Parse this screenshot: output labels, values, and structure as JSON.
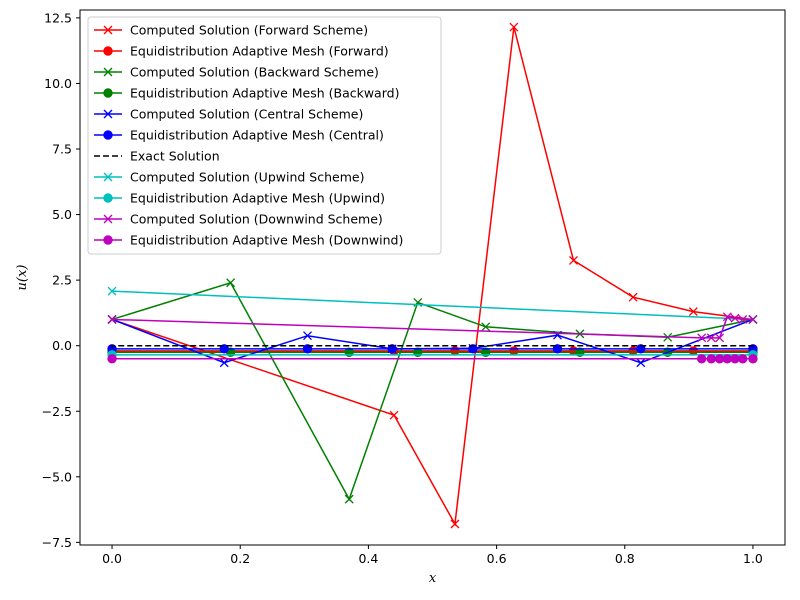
{
  "chart_data": {
    "type": "line",
    "title": "",
    "xlabel": "x",
    "ylabel": "u(x)",
    "xlim": [
      -0.05,
      1.05
    ],
    "ylim": [
      -7.6,
      12.8
    ],
    "xticks": [
      0.0,
      0.2,
      0.4,
      0.6,
      0.8,
      1.0
    ],
    "xtick_labels": [
      "0.0",
      "0.2",
      "0.4",
      "0.6",
      "0.8",
      "1.0"
    ],
    "yticks": [
      -7.5,
      -5.0,
      -2.5,
      0.0,
      2.5,
      5.0,
      7.5,
      10.0,
      12.5
    ],
    "ytick_labels": [
      "−7.5",
      "−5.0",
      "−2.5",
      "0.0",
      "2.5",
      "5.0",
      "7.5",
      "10.0",
      "12.5"
    ],
    "grid": false,
    "legend_position": "top-left",
    "series": [
      {
        "name": "Computed Solution (Forward Scheme)",
        "color": "#ff0000",
        "marker": "x",
        "dashed": false,
        "x": [
          0.0,
          0.44,
          0.535,
          0.627,
          0.72,
          0.813,
          0.907,
          1.0
        ],
        "y": [
          1.0,
          -2.65,
          -6.8,
          12.15,
          3.25,
          1.85,
          1.3,
          1.0
        ]
      },
      {
        "name": "Equidistribution Adaptive Mesh (Forward)",
        "color": "#ff0000",
        "marker": "o",
        "dashed": false,
        "x": [
          0.0,
          0.44,
          0.535,
          0.627,
          0.72,
          0.813,
          0.907,
          1.0
        ],
        "y": [
          -0.2,
          -0.2,
          -0.2,
          -0.2,
          -0.2,
          -0.2,
          -0.2,
          -0.2
        ]
      },
      {
        "name": "Computed Solution (Backward Scheme)",
        "color": "#008000",
        "marker": "x",
        "dashed": false,
        "x": [
          0.0,
          0.185,
          0.37,
          0.477,
          0.583,
          0.73,
          0.867,
          1.0
        ],
        "y": [
          1.0,
          2.4,
          -5.85,
          1.65,
          0.72,
          0.45,
          0.32,
          1.0
        ]
      },
      {
        "name": "Equidistribution Adaptive Mesh (Backward)",
        "color": "#008000",
        "marker": "o",
        "dashed": false,
        "x": [
          0.0,
          0.185,
          0.37,
          0.477,
          0.583,
          0.73,
          0.867,
          1.0
        ],
        "y": [
          -0.25,
          -0.25,
          -0.25,
          -0.25,
          -0.25,
          -0.25,
          -0.25,
          -0.25
        ]
      },
      {
        "name": "Computed Solution (Central Scheme)",
        "color": "#0000ff",
        "marker": "x",
        "dashed": false,
        "x": [
          0.0,
          0.175,
          0.305,
          0.437,
          0.563,
          0.695,
          0.825,
          1.0
        ],
        "y": [
          1.0,
          -0.65,
          0.38,
          -0.12,
          -0.1,
          0.4,
          -0.65,
          1.0
        ]
      },
      {
        "name": "Equidistribution Adaptive Mesh (Central)",
        "color": "#0000ff",
        "marker": "o",
        "dashed": false,
        "x": [
          0.0,
          0.175,
          0.305,
          0.437,
          0.563,
          0.695,
          0.825,
          1.0
        ],
        "y": [
          -0.12,
          -0.12,
          -0.12,
          -0.12,
          -0.12,
          -0.12,
          -0.12,
          -0.12
        ]
      },
      {
        "name": "Exact Solution",
        "color": "#000000",
        "marker": "none",
        "dashed": true,
        "x": [
          0.0,
          0.0,
          1.0,
          1.0
        ],
        "y": [
          -0.45,
          0.0,
          0.0,
          -0.45
        ]
      },
      {
        "name": "Computed Solution (Upwind Scheme)",
        "color": "#00bfbf",
        "marker": "x",
        "dashed": false,
        "x": [
          0.0,
          1.0
        ],
        "y": [
          2.08,
          1.0
        ]
      },
      {
        "name": "Equidistribution Adaptive Mesh (Upwind)",
        "color": "#00bfbf",
        "marker": "o",
        "dashed": false,
        "x": [
          0.0,
          1.0
        ],
        "y": [
          -0.35,
          -0.35
        ]
      },
      {
        "name": "Computed Solution (Downwind Scheme)",
        "color": "#bf00bf",
        "marker": "x",
        "dashed": false,
        "x": [
          0.0,
          0.92,
          0.935,
          0.948,
          0.96,
          0.972,
          0.984,
          1.0
        ],
        "y": [
          1.0,
          0.3,
          0.3,
          0.3,
          1.1,
          1.05,
          1.0,
          1.0
        ]
      },
      {
        "name": "Equidistribution Adaptive Mesh (Downwind)",
        "color": "#bf00bf",
        "marker": "o",
        "dashed": false,
        "x": [
          0.0,
          0.92,
          0.935,
          0.948,
          0.96,
          0.972,
          0.984,
          1.0
        ],
        "y": [
          -0.5,
          -0.5,
          -0.5,
          -0.5,
          -0.5,
          -0.5,
          -0.5,
          -0.5
        ]
      }
    ]
  }
}
